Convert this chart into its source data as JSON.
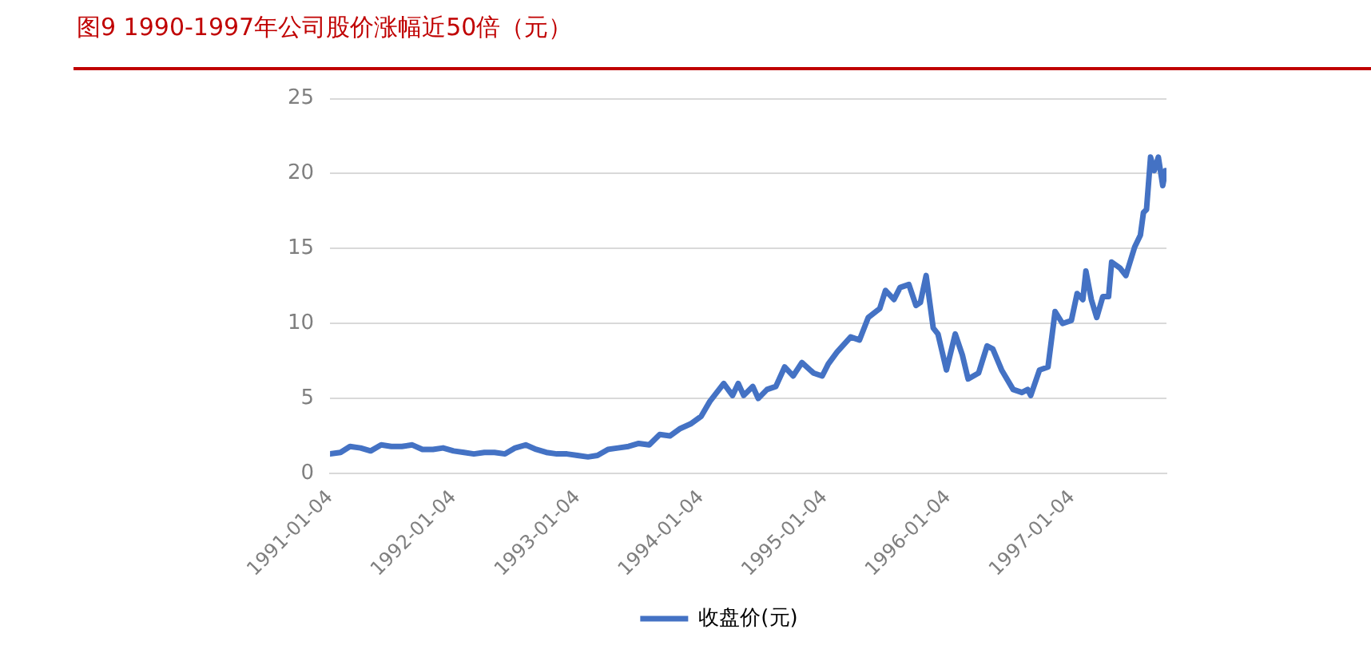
{
  "chart_data": {
    "type": "line",
    "title": "图9  1990-1997年公司股价涨幅近50倍（元）",
    "x": [
      "1991-01-04",
      "1991-02-04",
      "1991-03-04",
      "1991-04-04",
      "1991-05-04",
      "1991-06-04",
      "1991-07-04",
      "1991-08-04",
      "1991-09-04",
      "1991-10-04",
      "1991-11-04",
      "1991-12-04",
      "1992-01-04",
      "1992-02-04",
      "1992-03-04",
      "1992-04-04",
      "1992-05-04",
      "1992-06-04",
      "1992-07-04",
      "1992-08-04",
      "1992-09-04",
      "1992-10-04",
      "1992-11-04",
      "1992-12-04",
      "1993-01-04",
      "1993-02-04",
      "1993-03-04",
      "1993-04-04",
      "1993-05-04",
      "1993-06-04",
      "1993-07-04",
      "1993-08-04",
      "1993-09-04",
      "1993-10-04",
      "1993-11-04",
      "1993-12-04",
      "1994-01-04",
      "1994-01-30",
      "1994-03-12",
      "1994-04-07",
      "1994-04-24",
      "1994-05-10",
      "1994-06-06",
      "1994-06-22",
      "1994-07-18",
      "1994-08-13",
      "1994-09-08",
      "1994-10-03",
      "1994-10-29",
      "1994-12-02",
      "1994-12-28",
      "1995-01-15",
      "1995-02-10",
      "1995-03-22",
      "1995-04-17",
      "1995-05-13",
      "1995-06-16",
      "1995-07-03",
      "1995-07-28",
      "1995-08-15",
      "1995-09-10",
      "1995-10-01",
      "1995-10-14",
      "1995-10-31",
      "1995-11-21",
      "1995-12-05",
      "1995-12-30",
      "1996-01-25",
      "1996-02-15",
      "1996-03-03",
      "1996-04-03",
      "1996-04-28",
      "1996-05-15",
      "1996-06-10",
      "1996-07-14",
      "1996-08-09",
      "1996-08-26",
      "1996-09-04",
      "1996-09-30",
      "1996-10-25",
      "1996-11-15",
      "1996-12-07",
      "1997-01-02",
      "1997-01-19",
      "1997-02-05",
      "1997-02-14",
      "1997-03-02",
      "1997-03-18",
      "1997-04-05",
      "1997-04-22",
      "1997-05-01",
      "1997-05-26",
      "1997-06-12",
      "1997-07-08",
      "1997-07-25",
      "1997-08-03",
      "1997-08-12",
      "1997-08-24",
      "1997-09-04",
      "1997-09-16",
      "1997-09-29",
      "1997-10-07"
    ],
    "series": [
      {
        "name": "收盘价(元)",
        "color": "#4472c4",
        "values": [
          1.3,
          1.4,
          1.8,
          1.7,
          1.5,
          1.9,
          1.8,
          1.8,
          1.9,
          1.6,
          1.6,
          1.7,
          1.5,
          1.4,
          1.3,
          1.4,
          1.4,
          1.3,
          1.7,
          1.9,
          1.6,
          1.4,
          1.3,
          1.3,
          1.2,
          1.1,
          1.2,
          1.6,
          1.7,
          1.8,
          2.0,
          1.9,
          2.6,
          2.5,
          3.0,
          3.3,
          3.8,
          4.8,
          6.0,
          5.2,
          6.0,
          5.2,
          5.8,
          5.0,
          5.6,
          5.8,
          7.1,
          6.5,
          7.4,
          6.7,
          6.5,
          7.3,
          8.1,
          9.1,
          8.9,
          10.4,
          11.0,
          12.2,
          11.6,
          12.4,
          12.6,
          11.2,
          11.4,
          13.2,
          9.7,
          9.3,
          6.9,
          9.3,
          7.9,
          6.3,
          6.7,
          8.5,
          8.3,
          6.9,
          5.6,
          5.4,
          5.6,
          5.2,
          6.9,
          7.1,
          10.8,
          10.0,
          10.2,
          12.0,
          11.6,
          13.5,
          11.6,
          10.4,
          11.8,
          11.8,
          14.1,
          13.7,
          13.2,
          15.1,
          15.9,
          17.4,
          17.6,
          21.1,
          20.2,
          21.1,
          19.2,
          20.2
        ]
      }
    ],
    "xlim": [
      "1991-01-04",
      "1997-10-10"
    ],
    "xticks": [
      "1991-01-04",
      "1992-01-04",
      "1993-01-04",
      "1994-01-04",
      "1995-01-04",
      "1996-01-04",
      "1997-01-04"
    ],
    "ylim": [
      0,
      25
    ],
    "yticks": [
      0,
      5,
      10,
      15,
      20,
      25
    ],
    "grid": "y",
    "legend": "bottom",
    "marker": "none",
    "line_style": "solid"
  }
}
